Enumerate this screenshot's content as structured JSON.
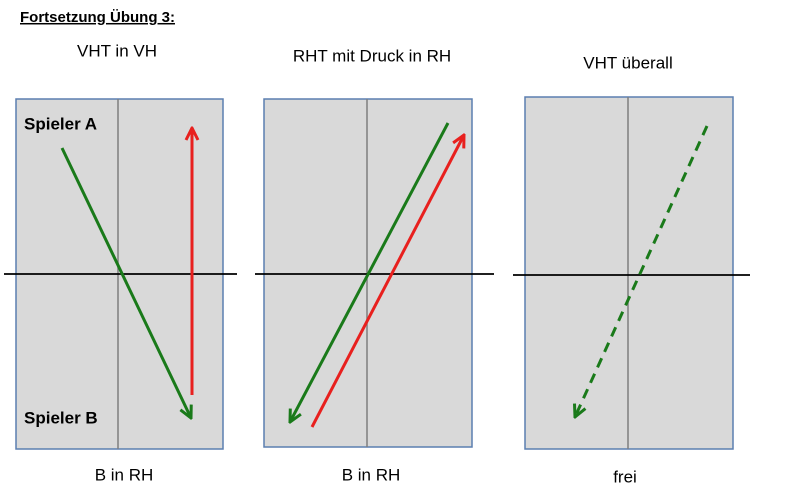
{
  "title": "Fortsetzung Übung 3:",
  "panels": [
    {
      "title": "VHT in VH",
      "footer": "B in RH",
      "player_top": "Spieler A",
      "player_bottom": "Spieler B"
    },
    {
      "title": "RHT mit Druck in RH",
      "footer": "B in RH"
    },
    {
      "title": "VHT überall",
      "footer": "frei"
    }
  ]
}
